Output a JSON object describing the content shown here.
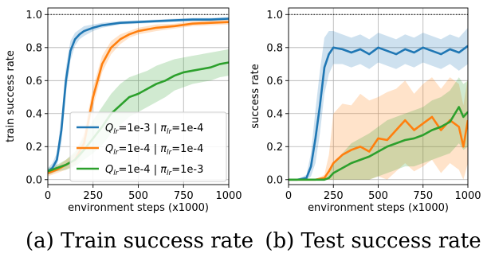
{
  "chart_data": [
    {
      "type": "line",
      "caption": "(a) Train success rate",
      "xlabel": "environment steps (x1000)",
      "ylabel": "train success rate",
      "xlim": [
        0,
        1000
      ],
      "ylim": [
        -0.03,
        1.04
      ],
      "xticks": [
        0,
        250,
        500,
        750,
        1000
      ],
      "yticks": [
        0.0,
        0.2,
        0.4,
        0.6,
        0.8,
        1.0
      ],
      "xtick_labels": [
        "0",
        "250",
        "500",
        "750",
        "1000"
      ],
      "ytick_labels": [
        "0.0",
        "0.2",
        "0.4",
        "0.6",
        "0.8",
        "1.0"
      ],
      "grid": true,
      "reference_line": 1.0,
      "legend_position": "lower-right",
      "series": [
        {
          "name": "Q_lr=1e-3 | π_lr=1e-4",
          "legend": {
            "q_sub": "lr",
            "q_val": "=1e-3 | ",
            "pi_sub": "lr",
            "pi_val": "=1e-4"
          },
          "color": "#1f77b4",
          "x": [
            0,
            25,
            50,
            75,
            100,
            125,
            150,
            175,
            200,
            250,
            300,
            400,
            500,
            600,
            700,
            800,
            900,
            1000
          ],
          "y": [
            0.05,
            0.07,
            0.12,
            0.3,
            0.6,
            0.78,
            0.85,
            0.88,
            0.9,
            0.92,
            0.935,
            0.95,
            0.955,
            0.96,
            0.965,
            0.97,
            0.97,
            0.975
          ],
          "lower": [
            0.03,
            0.04,
            0.08,
            0.22,
            0.52,
            0.72,
            0.81,
            0.85,
            0.87,
            0.9,
            0.92,
            0.94,
            0.945,
            0.95,
            0.955,
            0.96,
            0.96,
            0.965
          ],
          "upper": [
            0.07,
            0.1,
            0.16,
            0.38,
            0.68,
            0.84,
            0.89,
            0.91,
            0.93,
            0.94,
            0.95,
            0.96,
            0.965,
            0.97,
            0.975,
            0.98,
            0.98,
            0.985
          ]
        },
        {
          "name": "Q_lr=1e-4 | π_lr=1e-4",
          "legend": {
            "q_sub": "lr",
            "q_val": "=1e-4 | ",
            "pi_sub": "lr",
            "pi_val": "=1e-4"
          },
          "color": "#ff7f0e",
          "x": [
            0,
            50,
            100,
            150,
            200,
            250,
            300,
            350,
            400,
            450,
            500,
            600,
            700,
            800,
            900,
            1000
          ],
          "y": [
            0.04,
            0.06,
            0.09,
            0.12,
            0.22,
            0.5,
            0.7,
            0.8,
            0.85,
            0.88,
            0.9,
            0.92,
            0.93,
            0.945,
            0.95,
            0.955
          ],
          "lower": [
            0.02,
            0.04,
            0.06,
            0.09,
            0.17,
            0.44,
            0.65,
            0.76,
            0.82,
            0.86,
            0.88,
            0.9,
            0.915,
            0.93,
            0.935,
            0.94
          ],
          "upper": [
            0.06,
            0.08,
            0.12,
            0.16,
            0.28,
            0.56,
            0.75,
            0.84,
            0.88,
            0.9,
            0.92,
            0.94,
            0.945,
            0.96,
            0.965,
            0.97
          ]
        },
        {
          "name": "Q_lr=1e-4 | π_lr=1e-3",
          "legend": {
            "q_sub": "lr",
            "q_val": "=1e-4 | ",
            "pi_sub": "lr",
            "pi_val": "=1e-3"
          },
          "color": "#2ca02c",
          "x": [
            0,
            50,
            100,
            150,
            200,
            250,
            300,
            350,
            400,
            450,
            500,
            550,
            600,
            650,
            700,
            750,
            800,
            850,
            900,
            950,
            1000
          ],
          "y": [
            0.05,
            0.07,
            0.09,
            0.12,
            0.18,
            0.25,
            0.32,
            0.4,
            0.45,
            0.5,
            0.52,
            0.55,
            0.58,
            0.6,
            0.63,
            0.65,
            0.66,
            0.67,
            0.68,
            0.7,
            0.71
          ],
          "lower": [
            0.03,
            0.05,
            0.06,
            0.08,
            0.12,
            0.16,
            0.21,
            0.28,
            0.33,
            0.38,
            0.41,
            0.44,
            0.47,
            0.5,
            0.54,
            0.56,
            0.58,
            0.59,
            0.6,
            0.62,
            0.63
          ],
          "upper": [
            0.07,
            0.09,
            0.12,
            0.17,
            0.26,
            0.36,
            0.44,
            0.52,
            0.58,
            0.62,
            0.64,
            0.66,
            0.69,
            0.71,
            0.73,
            0.74,
            0.75,
            0.76,
            0.77,
            0.78,
            0.79
          ]
        }
      ]
    },
    {
      "type": "line",
      "caption": "(b) Test success rate",
      "xlabel": "environment steps (x1000)",
      "ylabel": "success rate",
      "xlim": [
        0,
        1000
      ],
      "ylim": [
        -0.03,
        1.04
      ],
      "xticks": [
        0,
        250,
        500,
        750,
        1000
      ],
      "yticks": [
        0.0,
        0.2,
        0.4,
        0.6,
        0.8,
        1.0
      ],
      "xtick_labels": [
        "0",
        "250",
        "500",
        "750",
        "1000"
      ],
      "ytick_labels": [
        "0.0",
        "0.2",
        "0.4",
        "0.6",
        "0.8",
        "1.0"
      ],
      "grid": true,
      "reference_line": 1.0,
      "series": [
        {
          "name": "Q_lr=1e-3 | π_lr=1e-4",
          "color": "#1f77b4",
          "x": [
            0,
            50,
            100,
            125,
            150,
            175,
            200,
            225,
            250,
            300,
            350,
            400,
            450,
            500,
            550,
            600,
            650,
            700,
            750,
            800,
            850,
            900,
            950,
            1000
          ],
          "y": [
            0.0,
            0.0,
            0.01,
            0.08,
            0.25,
            0.45,
            0.68,
            0.76,
            0.8,
            0.79,
            0.77,
            0.79,
            0.76,
            0.8,
            0.78,
            0.76,
            0.79,
            0.77,
            0.8,
            0.78,
            0.76,
            0.79,
            0.77,
            0.81
          ],
          "lower": [
            0.0,
            0.0,
            0.0,
            0.02,
            0.1,
            0.28,
            0.52,
            0.64,
            0.7,
            0.7,
            0.68,
            0.7,
            0.67,
            0.71,
            0.69,
            0.67,
            0.7,
            0.68,
            0.71,
            0.69,
            0.67,
            0.7,
            0.66,
            0.7
          ],
          "upper": [
            0.0,
            0.0,
            0.03,
            0.16,
            0.42,
            0.66,
            0.86,
            0.9,
            0.9,
            0.88,
            0.86,
            0.88,
            0.85,
            0.89,
            0.87,
            0.85,
            0.88,
            0.86,
            0.89,
            0.87,
            0.85,
            0.88,
            0.86,
            0.92
          ]
        },
        {
          "name": "Q_lr=1e-4 | π_lr=1e-4",
          "color": "#ff7f0e",
          "x": [
            0,
            150,
            200,
            225,
            250,
            300,
            350,
            400,
            450,
            500,
            550,
            600,
            650,
            700,
            750,
            800,
            850,
            900,
            950,
            975,
            1000
          ],
          "y": [
            0.0,
            0.0,
            0.01,
            0.05,
            0.1,
            0.15,
            0.18,
            0.2,
            0.17,
            0.25,
            0.24,
            0.3,
            0.36,
            0.3,
            0.34,
            0.38,
            0.3,
            0.36,
            0.32,
            0.2,
            0.36
          ],
          "lower": [
            0.0,
            0.0,
            0.0,
            0.0,
            0.0,
            0.0,
            0.0,
            0.0,
            0.0,
            0.02,
            0.0,
            0.05,
            0.1,
            0.05,
            0.08,
            0.12,
            0.04,
            0.1,
            0.06,
            0.0,
            0.1
          ],
          "upper": [
            0.0,
            0.0,
            0.03,
            0.15,
            0.4,
            0.46,
            0.45,
            0.52,
            0.48,
            0.5,
            0.53,
            0.55,
            0.6,
            0.52,
            0.58,
            0.62,
            0.55,
            0.62,
            0.58,
            0.45,
            0.62
          ]
        },
        {
          "name": "Q_lr=1e-4 | π_lr=1e-3",
          "color": "#2ca02c",
          "x": [
            0,
            200,
            225,
            250,
            300,
            350,
            400,
            450,
            500,
            550,
            600,
            650,
            700,
            750,
            800,
            850,
            900,
            950,
            975,
            1000
          ],
          "y": [
            0.0,
            0.0,
            0.01,
            0.04,
            0.07,
            0.1,
            0.12,
            0.14,
            0.17,
            0.2,
            0.22,
            0.24,
            0.25,
            0.27,
            0.3,
            0.32,
            0.35,
            0.44,
            0.38,
            0.41
          ],
          "lower": [
            0.0,
            0.0,
            0.0,
            0.0,
            0.0,
            0.0,
            0.0,
            0.0,
            0.02,
            0.04,
            0.06,
            0.08,
            0.08,
            0.1,
            0.12,
            0.14,
            0.16,
            0.22,
            0.18,
            0.2
          ],
          "upper": [
            0.0,
            0.0,
            0.03,
            0.1,
            0.16,
            0.22,
            0.25,
            0.28,
            0.32,
            0.36,
            0.38,
            0.4,
            0.42,
            0.44,
            0.48,
            0.5,
            0.54,
            0.62,
            0.58,
            0.6
          ]
        }
      ]
    }
  ]
}
